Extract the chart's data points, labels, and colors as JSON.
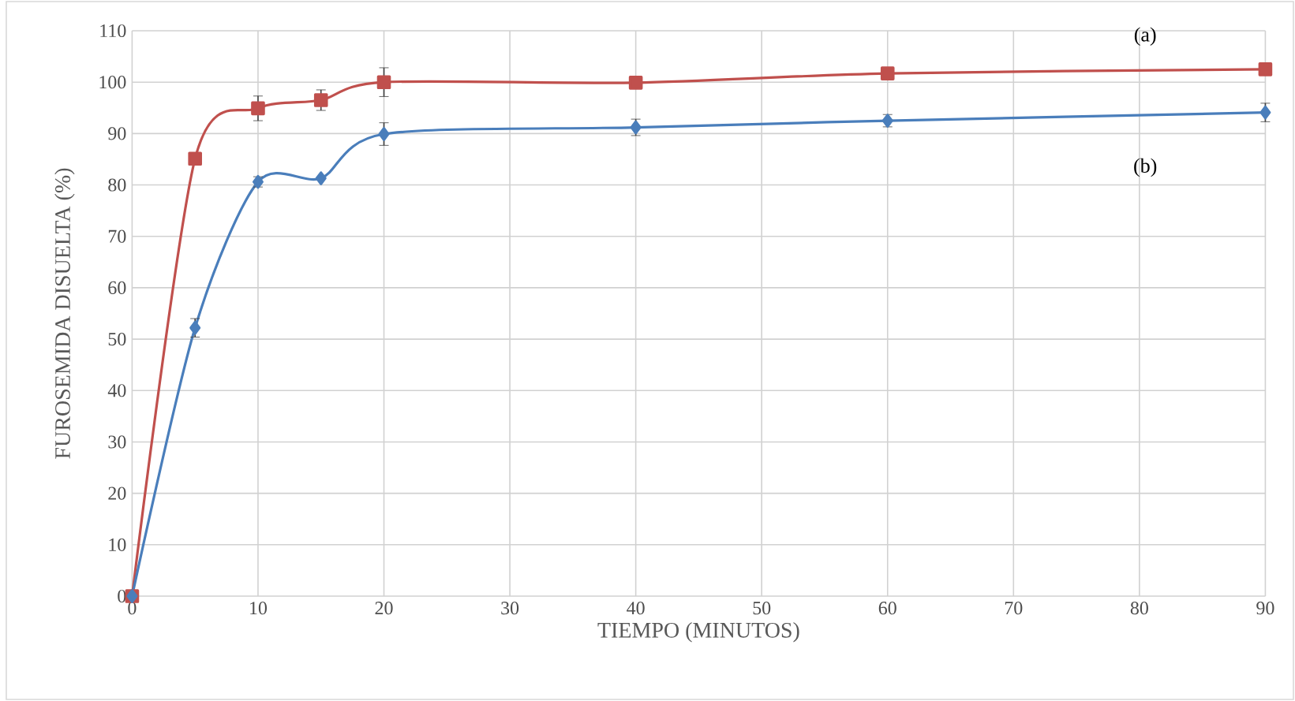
{
  "chart_data": {
    "type": "line",
    "xlabel": "TIEMPO (MINUTOS)",
    "ylabel": "FUROSEMIDA DISUELTA (%)",
    "x": [
      0,
      5,
      10,
      15,
      20,
      40,
      60,
      90
    ],
    "series": [
      {
        "color": "#c0504d",
        "marker": "square",
        "values": [
          0,
          85.1,
          94.9,
          96.5,
          100.0,
          99.9,
          101.7,
          102.5
        ],
        "errors": [
          null,
          null,
          2.4,
          2.0,
          2.8,
          null,
          null,
          null
        ]
      },
      {
        "color": "#4a7ebb",
        "marker": "diamond",
        "values": [
          0,
          52.2,
          80.6,
          81.3,
          89.9,
          91.2,
          92.5,
          94.1
        ],
        "errors": [
          null,
          1.8,
          1.0,
          null,
          2.2,
          1.6,
          1.2,
          1.8
        ]
      }
    ],
    "annotations": [
      "(a)",
      "(b)"
    ],
    "xlim": [
      0,
      90
    ],
    "xticks": [
      0,
      10,
      20,
      30,
      40,
      50,
      60,
      70,
      80,
      90
    ],
    "ylim": [
      0,
      110
    ],
    "yticks": [
      0,
      10,
      20,
      30,
      40,
      50,
      60,
      70,
      80,
      90,
      100,
      110
    ],
    "grid": true
  }
}
